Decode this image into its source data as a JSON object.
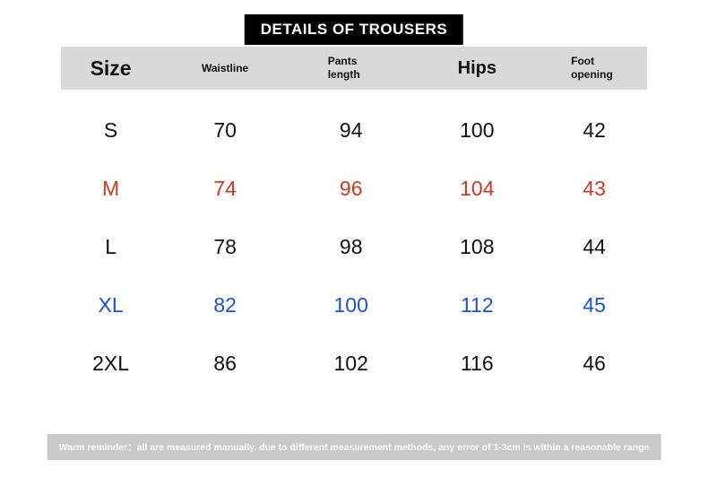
{
  "title": "DETAILS OF TROUSERS",
  "colors": {
    "banner_bg": "#000000",
    "header_bg": "#d9d9d9",
    "footer_bg": "#c9c9c9",
    "row_default": "#101010",
    "row_highlight_red": "#d0371d",
    "row_highlight_blue": "#1753d4"
  },
  "table": {
    "headers": [
      "Size",
      "Waistline",
      "Pants length",
      "Hips",
      "Foot opening"
    ],
    "rows": [
      {
        "cells": [
          "S",
          "70",
          "94",
          "100",
          "42"
        ],
        "color": "#101010"
      },
      {
        "cells": [
          "M",
          "74",
          "96",
          "104",
          "43"
        ],
        "color": "#d0371d"
      },
      {
        "cells": [
          "L",
          "78",
          "98",
          "108",
          "44"
        ],
        "color": "#101010"
      },
      {
        "cells": [
          "XL",
          "82",
          "100",
          "112",
          "45"
        ],
        "color": "#1753d4"
      },
      {
        "cells": [
          "2XL",
          "86",
          "102",
          "116",
          "46"
        ],
        "color": "#101010"
      }
    ]
  },
  "footer": "Warm reminder：all are measured manually. due to different measurement methods, any error of 1-3cm is within a reasonable range",
  "chart_data": {
    "type": "table",
    "title": "DETAILS OF TROUSERS",
    "columns": [
      "Size",
      "Waistline",
      "Pants length",
      "Hips",
      "Foot opening"
    ],
    "rows": [
      [
        "S",
        70,
        94,
        100,
        42
      ],
      [
        "M",
        74,
        96,
        104,
        43
      ],
      [
        "L",
        78,
        98,
        108,
        44
      ],
      [
        "XL",
        82,
        100,
        112,
        45
      ],
      [
        "2XL",
        86,
        102,
        116,
        46
      ]
    ],
    "notes": "M row highlighted red, XL row highlighted blue"
  }
}
